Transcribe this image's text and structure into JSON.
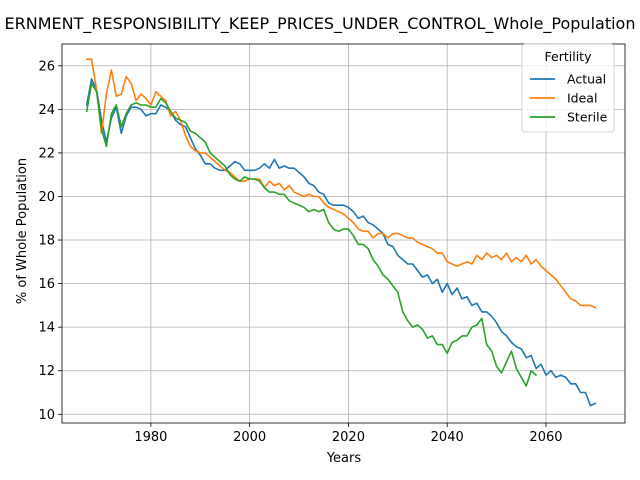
{
  "chart_data": {
    "type": "line",
    "title": "ERNMENT_RESPONSIBILITY_KEEP_PRICES_UNDER_CONTROL_Whole_Population",
    "xlabel": "Years",
    "ylabel": "% of Whole Population",
    "xlim": [
      1962,
      2076
    ],
    "ylim": [
      9.6,
      27.0
    ],
    "xticks": [
      1980,
      2000,
      2020,
      2040,
      2060
    ],
    "yticks": [
      10,
      12,
      14,
      16,
      18,
      20,
      22,
      24,
      26
    ],
    "grid": true,
    "legend": {
      "title": "Fertility",
      "position": "top-right"
    },
    "series": [
      {
        "name": "Actual",
        "color": "#1f77b4",
        "x": [
          1967,
          1968,
          1969,
          1970,
          1971,
          1972,
          1973,
          1974,
          1975,
          1976,
          1977,
          1978,
          1979,
          1980,
          1981,
          1982,
          1983,
          1984,
          1985,
          1986,
          1987,
          1988,
          1989,
          1990,
          1991,
          1992,
          1993,
          1994,
          1995,
          1996,
          1997,
          1998,
          1999,
          2000,
          2001,
          2002,
          2003,
          2004,
          2005,
          2006,
          2007,
          2008,
          2009,
          2010,
          2011,
          2012,
          2013,
          2014,
          2015,
          2016,
          2017,
          2018,
          2019,
          2020,
          2021,
          2022,
          2023,
          2024,
          2025,
          2026,
          2027,
          2028,
          2029,
          2030,
          2031,
          2032,
          2033,
          2034,
          2035,
          2036,
          2037,
          2038,
          2039,
          2040,
          2041,
          2042,
          2043,
          2044,
          2045,
          2046,
          2047,
          2048,
          2049,
          2050,
          2051,
          2052,
          2053,
          2054,
          2055,
          2056,
          2057,
          2058,
          2059,
          2060,
          2061,
          2062,
          2063,
          2064,
          2065,
          2066,
          2067,
          2068,
          2069,
          2070
        ],
        "y": [
          24.2,
          25.4,
          24.9,
          23.5,
          22.5,
          23.6,
          24.1,
          22.9,
          23.7,
          24.1,
          24.1,
          24.0,
          23.7,
          23.8,
          23.8,
          24.2,
          24.1,
          23.9,
          23.5,
          23.3,
          23.2,
          22.7,
          22.2,
          21.9,
          21.5,
          21.5,
          21.3,
          21.2,
          21.2,
          21.4,
          21.6,
          21.5,
          21.2,
          21.2,
          21.2,
          21.3,
          21.5,
          21.3,
          21.7,
          21.3,
          21.4,
          21.3,
          21.3,
          21.1,
          20.9,
          20.6,
          20.5,
          20.2,
          20.1,
          19.7,
          19.6,
          19.6,
          19.6,
          19.5,
          19.3,
          19.0,
          19.1,
          18.8,
          18.7,
          18.5,
          18.3,
          17.8,
          17.7,
          17.3,
          17.1,
          16.9,
          16.9,
          16.6,
          16.3,
          16.4,
          16.0,
          16.2,
          15.6,
          16.0,
          15.5,
          15.8,
          15.3,
          15.4,
          15.0,
          15.1,
          14.7,
          14.7,
          14.5,
          14.2,
          13.8,
          13.6,
          13.3,
          13.1,
          13.0,
          12.6,
          12.7,
          12.1,
          12.3,
          11.8,
          12.0,
          11.7,
          11.8,
          11.7,
          11.4,
          11.4,
          11.0,
          11.0,
          10.4,
          10.5
        ]
      },
      {
        "name": "Ideal",
        "color": "#ff7f0e",
        "x": [
          1967,
          1968,
          1969,
          1970,
          1971,
          1972,
          1973,
          1974,
          1975,
          1976,
          1977,
          1978,
          1979,
          1980,
          1981,
          1982,
          1983,
          1984,
          1985,
          1986,
          1987,
          1988,
          1989,
          1990,
          1991,
          1992,
          1993,
          1994,
          1995,
          1996,
          1997,
          1998,
          1999,
          2000,
          2001,
          2002,
          2003,
          2004,
          2005,
          2006,
          2007,
          2008,
          2009,
          2010,
          2011,
          2012,
          2013,
          2014,
          2015,
          2016,
          2017,
          2018,
          2019,
          2020,
          2021,
          2022,
          2023,
          2024,
          2025,
          2026,
          2027,
          2028,
          2029,
          2030,
          2031,
          2032,
          2033,
          2034,
          2035,
          2036,
          2037,
          2038,
          2039,
          2040,
          2041,
          2042,
          2043,
          2044,
          2045,
          2046,
          2047,
          2048,
          2049,
          2050,
          2051,
          2052,
          2053,
          2054,
          2055,
          2056,
          2057,
          2058,
          2059,
          2060,
          2061,
          2062,
          2063,
          2064,
          2065,
          2066,
          2067,
          2068,
          2069,
          2070
        ],
        "y": [
          26.3,
          26.3,
          24.9,
          22.9,
          24.7,
          25.8,
          24.6,
          24.7,
          25.5,
          25.2,
          24.4,
          24.7,
          24.5,
          24.2,
          24.8,
          24.6,
          24.4,
          23.7,
          23.9,
          23.5,
          22.8,
          22.3,
          22.1,
          22.0,
          22.0,
          21.8,
          21.6,
          21.4,
          21.2,
          21.1,
          20.9,
          20.7,
          20.7,
          20.8,
          20.8,
          20.8,
          20.4,
          20.7,
          20.5,
          20.6,
          20.3,
          20.5,
          20.2,
          20.1,
          20.0,
          20.1,
          20.0,
          20.0,
          19.7,
          19.5,
          19.4,
          19.3,
          19.2,
          19.0,
          18.8,
          18.5,
          18.4,
          18.4,
          18.1,
          18.3,
          18.3,
          18.1,
          18.3,
          18.3,
          18.2,
          18.1,
          18.1,
          17.9,
          17.8,
          17.7,
          17.6,
          17.4,
          17.4,
          17.0,
          16.9,
          16.8,
          16.9,
          17.0,
          16.9,
          17.3,
          17.1,
          17.4,
          17.2,
          17.3,
          17.1,
          17.4,
          17.0,
          17.2,
          17.0,
          17.3,
          16.9,
          17.1,
          16.8,
          16.6,
          16.4,
          16.2,
          15.9,
          15.6,
          15.3,
          15.2,
          15.0,
          15.0,
          15.0,
          14.9
        ]
      },
      {
        "name": "Sterile",
        "color": "#2ca02c",
        "x": [
          1967,
          1968,
          1969,
          1970,
          1971,
          1972,
          1973,
          1974,
          1975,
          1976,
          1977,
          1978,
          1979,
          1980,
          1981,
          1982,
          1983,
          1984,
          1985,
          1986,
          1987,
          1988,
          1989,
          1990,
          1991,
          1992,
          1993,
          1994,
          1995,
          1996,
          1997,
          1998,
          1999,
          2000,
          2001,
          2002,
          2003,
          2004,
          2005,
          2006,
          2007,
          2008,
          2009,
          2010,
          2011,
          2012,
          2013,
          2014,
          2015,
          2016,
          2017,
          2018,
          2019,
          2020,
          2021,
          2022,
          2023,
          2024,
          2025,
          2026,
          2027,
          2028,
          2029,
          2030,
          2031,
          2032,
          2033,
          2034,
          2035,
          2036,
          2037,
          2038,
          2039,
          2040,
          2041,
          2042,
          2043,
          2044,
          2045,
          2046,
          2047,
          2048,
          2049,
          2050,
          2051,
          2052,
          2053,
          2054,
          2055,
          2056,
          2057,
          2058
        ],
        "y": [
          23.9,
          25.2,
          24.8,
          23.1,
          22.3,
          23.8,
          24.2,
          23.2,
          23.8,
          24.2,
          24.3,
          24.2,
          24.2,
          24.1,
          24.1,
          24.5,
          24.3,
          23.9,
          23.6,
          23.5,
          23.4,
          23.0,
          22.9,
          22.7,
          22.5,
          22.0,
          21.8,
          21.6,
          21.4,
          21.0,
          20.8,
          20.7,
          20.9,
          20.8,
          20.8,
          20.7,
          20.4,
          20.2,
          20.2,
          20.1,
          20.1,
          19.8,
          19.7,
          19.6,
          19.5,
          19.3,
          19.4,
          19.3,
          19.4,
          18.8,
          18.5,
          18.4,
          18.5,
          18.5,
          18.2,
          17.8,
          17.8,
          17.6,
          17.1,
          16.8,
          16.4,
          16.2,
          15.9,
          15.6,
          14.7,
          14.3,
          14.0,
          14.1,
          13.9,
          13.5,
          13.6,
          13.2,
          13.2,
          12.8,
          13.3,
          13.4,
          13.6,
          13.6,
          14.0,
          14.1,
          14.4,
          13.2,
          12.9,
          12.2,
          11.9,
          12.4,
          12.9,
          12.1,
          11.7,
          11.3,
          12.0,
          11.8
        ]
      }
    ]
  }
}
